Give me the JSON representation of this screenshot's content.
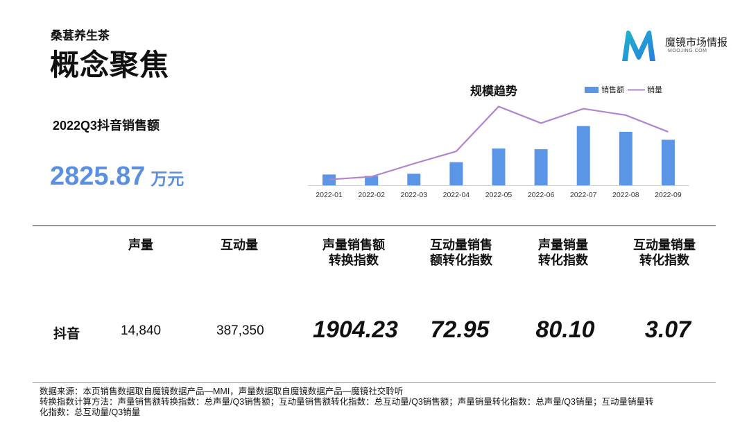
{
  "header": {
    "subtitle": "桑葚养生茶",
    "title": "概念聚焦"
  },
  "logo": {
    "name": "魔镜市场情报",
    "sub": "MOOJING.COM",
    "colors": [
      "#1fb6c9",
      "#2a7de1"
    ]
  },
  "summary": {
    "label": "2022Q3抖音销售额",
    "value": "2825.87",
    "unit": "万元",
    "accent": "#5b8fe0"
  },
  "chart_data": {
    "type": "bar+line",
    "title": "规模趋势",
    "categories": [
      "2022-01",
      "2022-02",
      "2022-03",
      "2022-04",
      "2022-05",
      "2022-06",
      "2022-07",
      "2022-08",
      "2022-09"
    ],
    "series": [
      {
        "name": "销售额",
        "type": "bar",
        "color": "#5b95e5",
        "values": [
          15,
          13,
          16,
          32,
          51,
          50,
          82,
          74,
          63
        ]
      },
      {
        "name": "销量",
        "type": "line",
        "color": "#b184cf",
        "values": [
          8,
          12,
          30,
          47,
          109,
          86,
          106,
          97,
          74
        ]
      }
    ],
    "legend": "top-right",
    "grid": false
  },
  "table": {
    "columns": [
      "声量",
      "互动量",
      "声量销售额\n转换指数",
      "互动量销售\n额转化指数",
      "声量销量\n转化指数",
      "互动量销量\n转化指数"
    ],
    "row": {
      "label": "抖音",
      "voice": "14,840",
      "interaction": "387,350",
      "idx1": "1904.23",
      "idx2": "72.95",
      "idx3": "80.10",
      "idx4": "3.07"
    }
  },
  "footnote": {
    "line1": "数据来源：本页销售数据取自魔镜数据产品—MMI，声量数据取自魔镜数据产品—魔镜社交聆听",
    "line2": "转换指数计算方法：声量销售额转换指数：总声量/Q3销售额；互动量销售额转化指数：总互动量/Q3销售额；声量销量转化指数：总声量/Q3销量；互动量销量转",
    "line3": "化指数：总互动量/Q3销量"
  }
}
